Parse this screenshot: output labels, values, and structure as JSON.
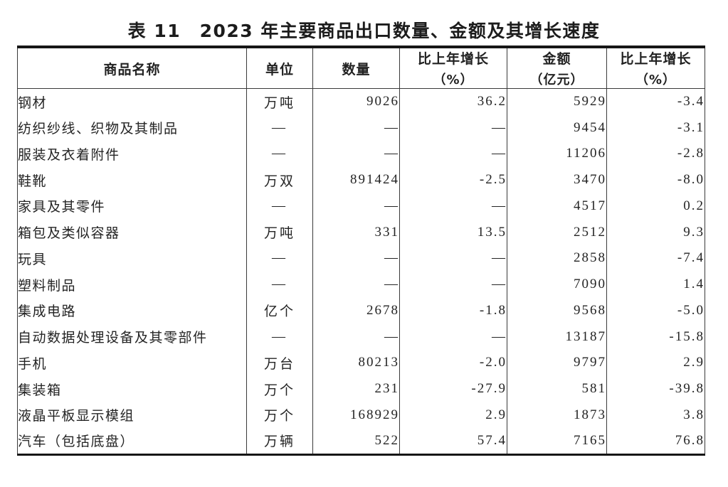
{
  "page": {
    "background": "#ffffff",
    "text_color": "#242424",
    "rule_color": "#161616"
  },
  "title": "表 11　2023 年主要商品出口数量、金额及其增长速度",
  "table": {
    "columns": [
      {
        "label": "商品名称",
        "sub": ""
      },
      {
        "label": "单位",
        "sub": ""
      },
      {
        "label": "数量",
        "sub": ""
      },
      {
        "label": "比上年增长",
        "sub": "（%）"
      },
      {
        "label": "金额",
        "sub": "（亿元）"
      },
      {
        "label": "比上年增长",
        "sub": "（%）"
      }
    ],
    "na_placeholder": "—",
    "rows": [
      {
        "name": "钢材",
        "unit": "万吨",
        "quantity": "9026",
        "quantity_growth": "36.2",
        "value": "5929",
        "value_growth": "-3.4"
      },
      {
        "name": "纺织纱线、织物及其制品",
        "unit": "—",
        "quantity": "—",
        "quantity_growth": "—",
        "value": "9454",
        "value_growth": "-3.1"
      },
      {
        "name": "服装及衣着附件",
        "unit": "—",
        "quantity": "—",
        "quantity_growth": "—",
        "value": "11206",
        "value_growth": "-2.8"
      },
      {
        "name": "鞋靴",
        "unit": "万双",
        "quantity": "891424",
        "quantity_growth": "-2.5",
        "value": "3470",
        "value_growth": "-8.0"
      },
      {
        "name": "家具及其零件",
        "unit": "—",
        "quantity": "—",
        "quantity_growth": "—",
        "value": "4517",
        "value_growth": "0.2"
      },
      {
        "name": "箱包及类似容器",
        "unit": "万吨",
        "quantity": "331",
        "quantity_growth": "13.5",
        "value": "2512",
        "value_growth": "9.3"
      },
      {
        "name": "玩具",
        "unit": "—",
        "quantity": "—",
        "quantity_growth": "—",
        "value": "2858",
        "value_growth": "-7.4"
      },
      {
        "name": "塑料制品",
        "unit": "—",
        "quantity": "—",
        "quantity_growth": "—",
        "value": "7090",
        "value_growth": "1.4"
      },
      {
        "name": "集成电路",
        "unit": "亿个",
        "quantity": "2678",
        "quantity_growth": "-1.8",
        "value": "9568",
        "value_growth": "-5.0"
      },
      {
        "name": "自动数据处理设备及其零部件",
        "unit": "—",
        "quantity": "—",
        "quantity_growth": "—",
        "value": "13187",
        "value_growth": "-15.8"
      },
      {
        "name": "手机",
        "unit": "万台",
        "quantity": "80213",
        "quantity_growth": "-2.0",
        "value": "9797",
        "value_growth": "2.9"
      },
      {
        "name": "集装箱",
        "unit": "万个",
        "quantity": "231",
        "quantity_growth": "-27.9",
        "value": "581",
        "value_growth": "-39.8"
      },
      {
        "name": "液晶平板显示模组",
        "unit": "万个",
        "quantity": "168929",
        "quantity_growth": "2.9",
        "value": "1873",
        "value_growth": "3.8"
      },
      {
        "name": "汽车（包括底盘）",
        "unit": "万辆",
        "quantity": "522",
        "quantity_growth": "57.4",
        "value": "7165",
        "value_growth": "76.8"
      }
    ]
  }
}
